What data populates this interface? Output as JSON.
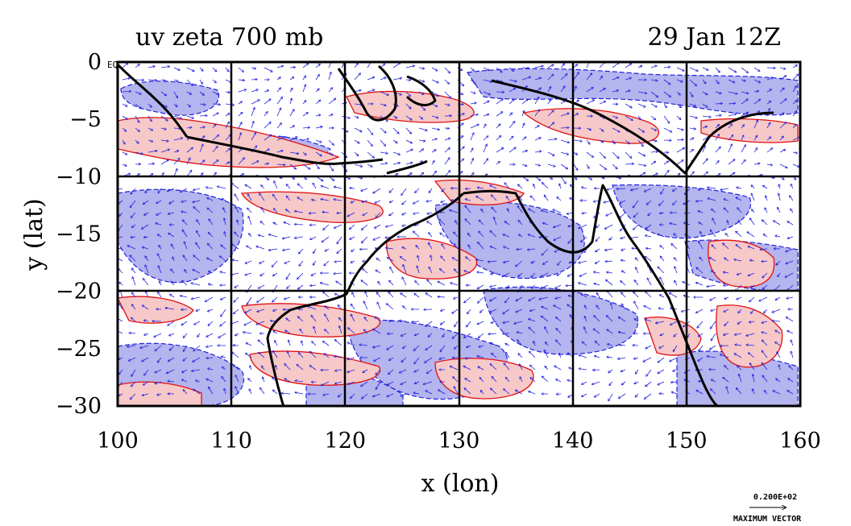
{
  "title_left": "uv zeta 700 mb",
  "title_right": "29 Jan 12Z",
  "eq_label": "EQ",
  "xlabel": "x (lon)",
  "ylabel": "y (lat)",
  "legend": {
    "value": "0.200E+02",
    "label": "MAXIMUM VECTOR"
  },
  "colors": {
    "positive_fill": "#f6c8c8",
    "positive_line": "#e01010",
    "negative_fill": "#b4b4ee",
    "negative_line": "#2020e0",
    "coast": "#000000",
    "grid": "#000000"
  },
  "chart_data": {
    "type": "map",
    "xlim": [
      100,
      160
    ],
    "ylim": [
      -30,
      0
    ],
    "x_ticks": [
      100,
      110,
      120,
      130,
      140,
      150,
      160
    ],
    "y_ticks": [
      0,
      -5,
      -10,
      -15,
      -20,
      -25,
      -30
    ],
    "x_tick_labels": [
      "100",
      "110",
      "120",
      "130",
      "140",
      "150",
      "160"
    ],
    "y_tick_labels": [
      "0",
      "−5",
      "−10",
      "−15",
      "−20",
      "−25",
      "−30"
    ],
    "grid": true,
    "fields": [
      "uv wind vectors",
      "relative vorticity (zeta)"
    ],
    "level": "700 mb",
    "time": "29 Jan 12Z",
    "max_vector": 20.0
  }
}
